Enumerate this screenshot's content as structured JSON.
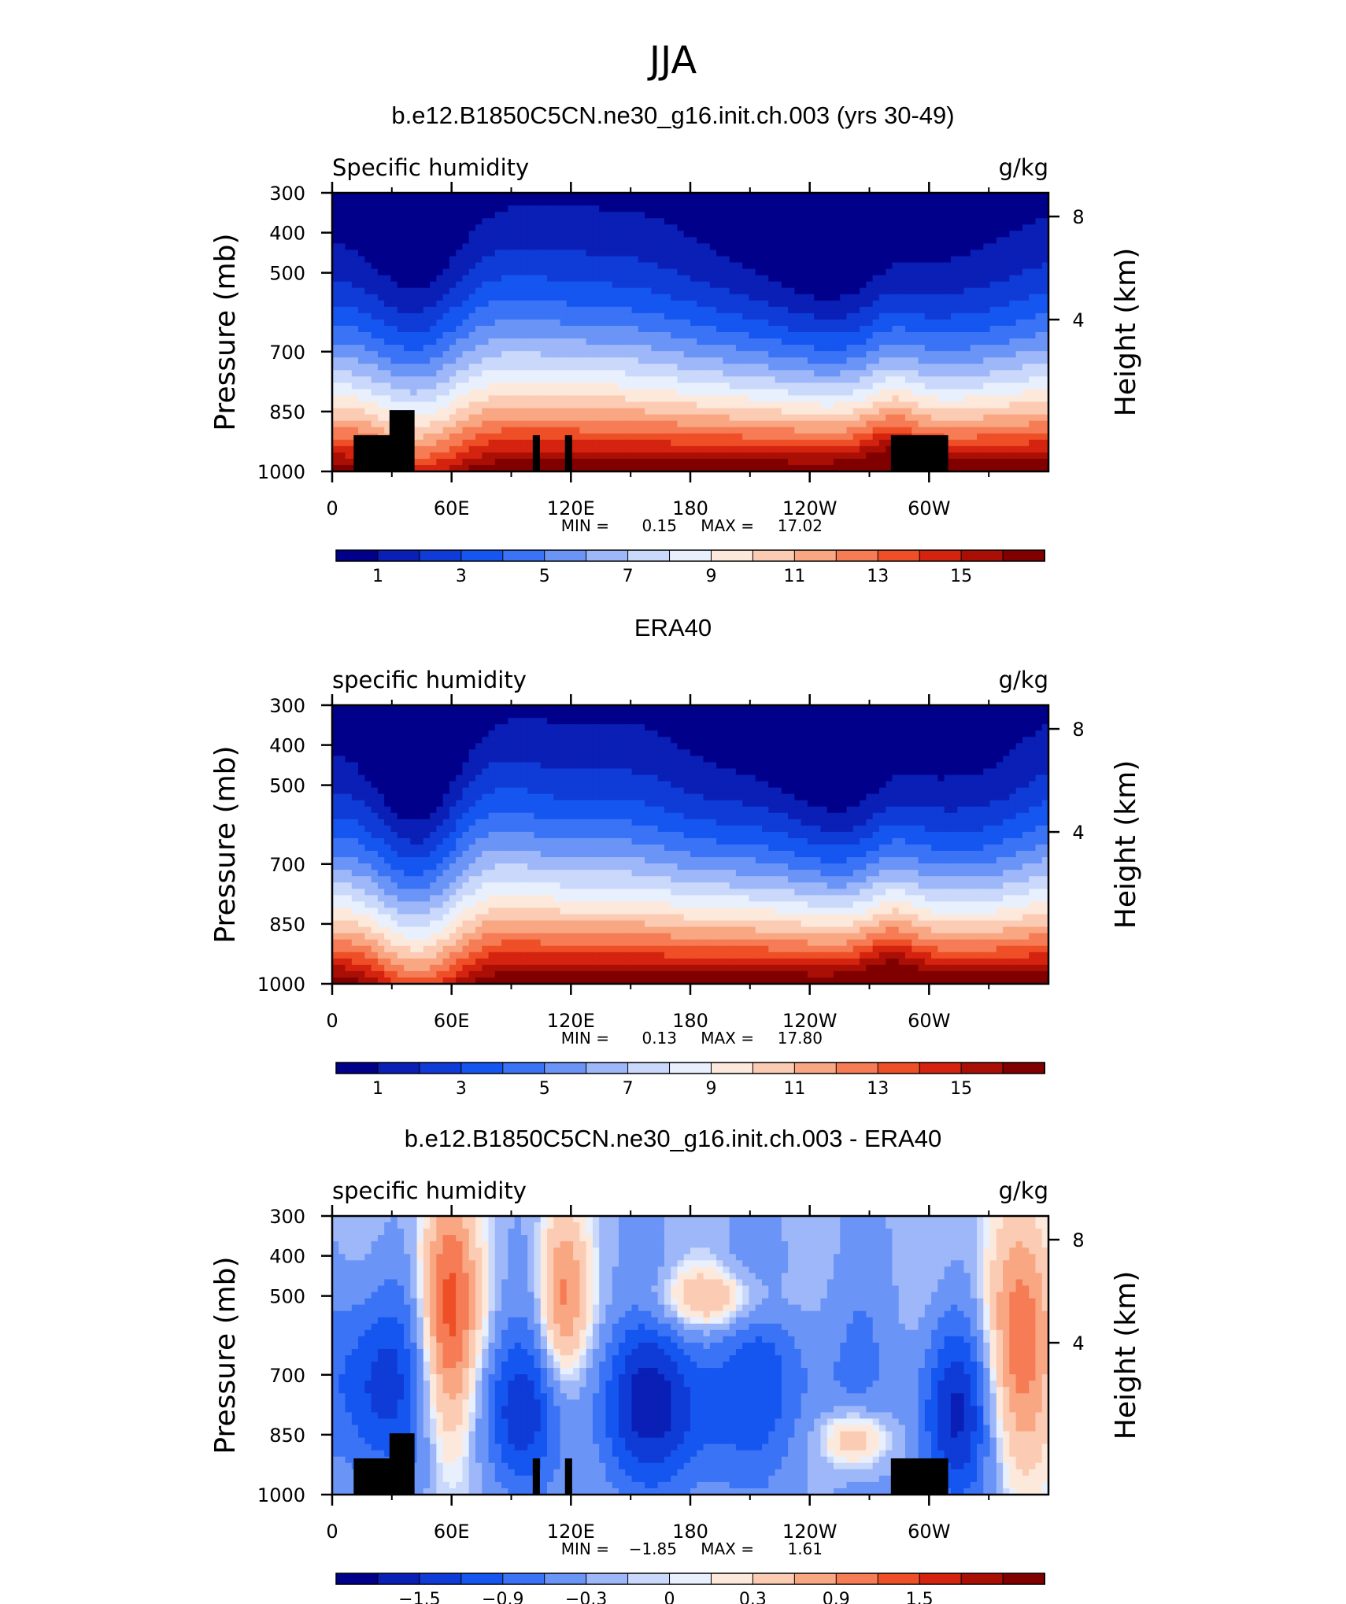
{
  "figure_title": "JJA",
  "chart_data": [
    {
      "type": "heatmap",
      "title": "b.e12.B1850C5CN.ne30_g16.init.ch.003 (yrs 30-49)",
      "left_label": "Specific humidity",
      "right_label": "g/kg",
      "ylabel": "Pressure (mb)",
      "y2label": "Height (km)",
      "xticks": [
        "0",
        "60E",
        "120E",
        "180",
        "120W",
        "60W"
      ],
      "yticks": [
        "300",
        "400",
        "500",
        "700",
        "850",
        "1000"
      ],
      "y2ticks": [
        "8",
        "4"
      ],
      "stats_min_label": "MIN =",
      "min": "0.15",
      "stats_max_label": "MAX =",
      "max": "17.02",
      "colorbar_labels": [
        "1",
        "3",
        "5",
        "7",
        "9",
        "11",
        "13",
        "15"
      ],
      "colors": [
        "#00008b",
        "#0a1fb5",
        "#0f3bd6",
        "#1656f0",
        "#3a73f5",
        "#6b94f7",
        "#9db7f9",
        "#c9d8fb",
        "#e9f0fd",
        "#fde9dc",
        "#fbccb3",
        "#f9a683",
        "#f57c55",
        "#ef4f27",
        "#d4230f",
        "#aa0f05",
        "#800000"
      ]
    },
    {
      "type": "heatmap",
      "title": "ERA40",
      "left_label": "specific humidity",
      "right_label": "g/kg",
      "ylabel": "Pressure (mb)",
      "y2label": "Height (km)",
      "xticks": [
        "0",
        "60E",
        "120E",
        "180",
        "120W",
        "60W"
      ],
      "yticks": [
        "300",
        "400",
        "500",
        "700",
        "850",
        "1000"
      ],
      "y2ticks": [
        "8",
        "4"
      ],
      "stats_min_label": "MIN =",
      "min": "0.13",
      "stats_max_label": "MAX =",
      "max": "17.80",
      "colorbar_labels": [
        "1",
        "3",
        "5",
        "7",
        "9",
        "11",
        "13",
        "15"
      ],
      "colors": [
        "#00008b",
        "#0a1fb5",
        "#0f3bd6",
        "#1656f0",
        "#3a73f5",
        "#6b94f7",
        "#9db7f9",
        "#c9d8fb",
        "#e9f0fd",
        "#fde9dc",
        "#fbccb3",
        "#f9a683",
        "#f57c55",
        "#ef4f27",
        "#d4230f",
        "#aa0f05",
        "#800000"
      ]
    },
    {
      "type": "heatmap",
      "title": "b.e12.B1850C5CN.ne30_g16.init.ch.003 - ERA40",
      "left_label": "specific humidity",
      "right_label": "g/kg",
      "ylabel": "Pressure (mb)",
      "y2label": "Height (km)",
      "xticks": [
        "0",
        "60E",
        "120E",
        "180",
        "120W",
        "60W"
      ],
      "yticks": [
        "300",
        "400",
        "500",
        "700",
        "850",
        "1000"
      ],
      "y2ticks": [
        "8",
        "4"
      ],
      "stats_min_label": "MIN =",
      "min": "−1.85",
      "stats_max_label": "MAX =",
      "max": "1.61",
      "colorbar_labels": [
        "−1.5",
        "−0.9",
        "−0.3",
        "0",
        "0.3",
        "0.9",
        "1.5"
      ],
      "colors": [
        "#00008b",
        "#0a1fb5",
        "#0f3bd6",
        "#1656f0",
        "#3a73f5",
        "#6b94f7",
        "#9db7f9",
        "#c9d8fb",
        "#e9f0fd",
        "#fde9dc",
        "#fbccb3",
        "#f9a683",
        "#f57c55",
        "#ef4f27",
        "#d4230f",
        "#aa0f05",
        "#800000"
      ]
    }
  ]
}
